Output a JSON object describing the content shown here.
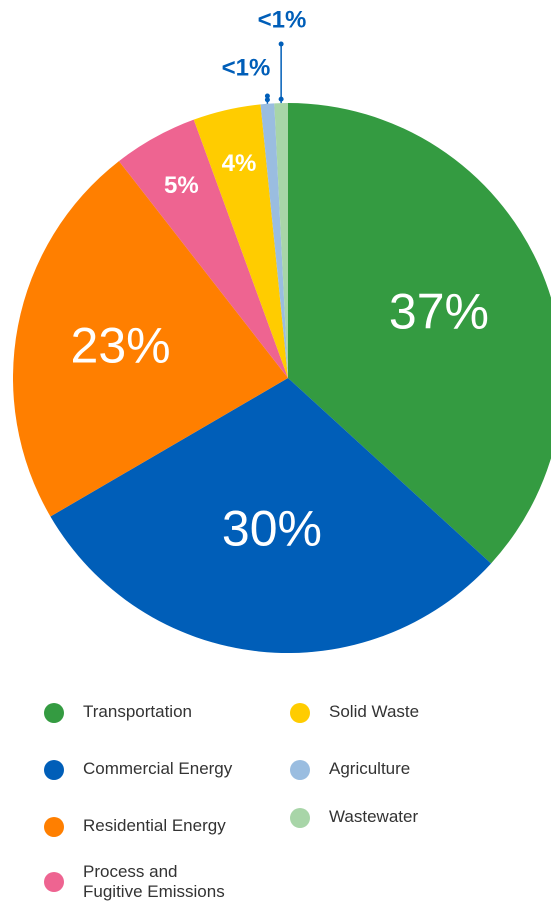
{
  "chart_data": {
    "type": "pie",
    "slices": [
      {
        "name": "Transportation",
        "value": 37,
        "label": "37%",
        "color": "#349B41"
      },
      {
        "name": "Commercial Energy",
        "value": 30,
        "label": "30%",
        "color": "#005EB8"
      },
      {
        "name": "Residential Energy",
        "value": 23,
        "label": "23%",
        "color": "#FF7F00"
      },
      {
        "name": "Process and\nFugitive Emissions",
        "value": 5,
        "label": "5%",
        "color": "#EE6491"
      },
      {
        "name": "Solid Waste",
        "value": 4,
        "label": "4%",
        "color": "#FFCC00"
      },
      {
        "name": "Agriculture",
        "value": 0.8,
        "label": "<1%",
        "color": "#9ABDE0"
      },
      {
        "name": "Wastewater",
        "value": 0.8,
        "label": "<1%",
        "color": "#A8D5A8"
      }
    ],
    "callout_color": "#005EB8",
    "legend_position": "bottom"
  }
}
